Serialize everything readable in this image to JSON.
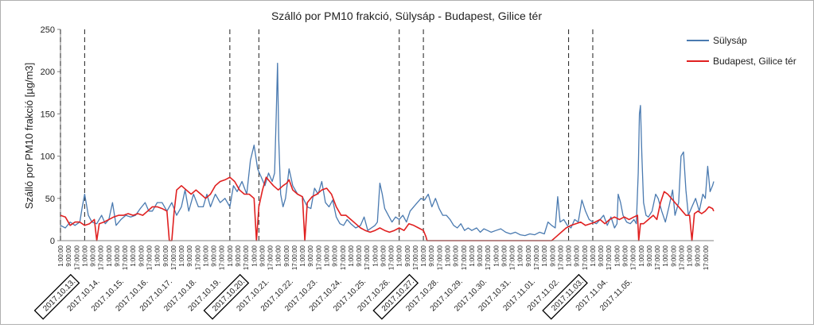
{
  "chart_data": {
    "type": "line",
    "title": "Szálló por PM10 frakció, Sülysáp - Budapest, Gilice tér",
    "ylabel": "Szálló por PM10 frakció [µg/m3]",
    "xlabel": "",
    "ylim": [
      0,
      250
    ],
    "y_ticks": [
      0,
      50,
      100,
      150,
      200,
      250
    ],
    "grid": false,
    "legend_position": "top-right",
    "day_labels": [
      "2017.10.13.",
      "2017.10.14.",
      "2017.10.15.",
      "2017.10.16.",
      "2017.10.17.",
      "2017.10.18.",
      "2017.10.19.",
      "2017.10.20.",
      "2017.10.21.",
      "2017.10.22.",
      "2017.10.23.",
      "2017.10.24.",
      "2017.10.25.",
      "2017.10.26.",
      "2017.10.27.",
      "2017.10.28.",
      "2017.10.29.",
      "2017.10.30.",
      "2017.10.31.",
      "2017.11.01.",
      "2017.11.02.",
      "2017.11.03.",
      "2017.11.04.",
      "2017.11.05."
    ],
    "hour_labels": [
      "1:00:00",
      "9:00:00",
      "17:00:00"
    ],
    "boxed_days": [
      "2017.10.13.",
      "2017.10.20.",
      "2017.10.27.",
      "2017.11.03."
    ],
    "dashed_markers_day": [
      0.0,
      1.0,
      7.0,
      8.2,
      14.0,
      15.0,
      21.0,
      22.0
    ],
    "series": [
      {
        "name": "Sülysáp",
        "color": "#4a7ab0",
        "points": [
          [
            0,
            18
          ],
          [
            0.2,
            15
          ],
          [
            0.4,
            22
          ],
          [
            0.6,
            18
          ],
          [
            0.8,
            22
          ],
          [
            0.9,
            40
          ],
          [
            1,
            55
          ],
          [
            1.15,
            30
          ],
          [
            1.3,
            22
          ],
          [
            1.5,
            20
          ],
          [
            1.7,
            30
          ],
          [
            1.85,
            20
          ],
          [
            2,
            25
          ],
          [
            2.15,
            45
          ],
          [
            2.3,
            18
          ],
          [
            2.5,
            25
          ],
          [
            2.7,
            30
          ],
          [
            2.9,
            28
          ],
          [
            3.1,
            30
          ],
          [
            3.3,
            38
          ],
          [
            3.5,
            45
          ],
          [
            3.65,
            35
          ],
          [
            3.8,
            35
          ],
          [
            4,
            45
          ],
          [
            4.2,
            45
          ],
          [
            4.4,
            35
          ],
          [
            4.6,
            45
          ],
          [
            4.8,
            30
          ],
          [
            5,
            40
          ],
          [
            5.15,
            60
          ],
          [
            5.3,
            35
          ],
          [
            5.5,
            55
          ],
          [
            5.7,
            40
          ],
          [
            5.9,
            40
          ],
          [
            6.05,
            55
          ],
          [
            6.2,
            40
          ],
          [
            6.4,
            55
          ],
          [
            6.6,
            45
          ],
          [
            6.8,
            50
          ],
          [
            7,
            40
          ],
          [
            7.15,
            65
          ],
          [
            7.3,
            58
          ],
          [
            7.5,
            70
          ],
          [
            7.7,
            55
          ],
          [
            7.85,
            95
          ],
          [
            8,
            113
          ],
          [
            8.15,
            85
          ],
          [
            8.3,
            75
          ],
          [
            8.45,
            65
          ],
          [
            8.6,
            80
          ],
          [
            8.75,
            70
          ],
          [
            8.85,
            80
          ],
          [
            8.92,
            150
          ],
          [
            8.97,
            210
          ],
          [
            9.02,
            120
          ],
          [
            9.1,
            55
          ],
          [
            9.2,
            40
          ],
          [
            9.3,
            50
          ],
          [
            9.45,
            85
          ],
          [
            9.6,
            65
          ],
          [
            9.8,
            55
          ],
          [
            10,
            52
          ],
          [
            10.2,
            40
          ],
          [
            10.35,
            38
          ],
          [
            10.5,
            62
          ],
          [
            10.65,
            55
          ],
          [
            10.8,
            70
          ],
          [
            10.95,
            45
          ],
          [
            11.1,
            40
          ],
          [
            11.25,
            48
          ],
          [
            11.4,
            28
          ],
          [
            11.55,
            20
          ],
          [
            11.7,
            18
          ],
          [
            11.85,
            25
          ],
          [
            12,
            20
          ],
          [
            12.2,
            15
          ],
          [
            12.4,
            18
          ],
          [
            12.55,
            28
          ],
          [
            12.7,
            12
          ],
          [
            12.85,
            15
          ],
          [
            13,
            18
          ],
          [
            13.1,
            22
          ],
          [
            13.2,
            68
          ],
          [
            13.3,
            55
          ],
          [
            13.4,
            38
          ],
          [
            13.55,
            30
          ],
          [
            13.7,
            22
          ],
          [
            13.85,
            28
          ],
          [
            14,
            25
          ],
          [
            14.15,
            30
          ],
          [
            14.3,
            22
          ],
          [
            14.45,
            35
          ],
          [
            14.6,
            40
          ],
          [
            14.75,
            45
          ],
          [
            14.9,
            50
          ],
          [
            15.05,
            48
          ],
          [
            15.2,
            55
          ],
          [
            15.35,
            40
          ],
          [
            15.5,
            50
          ],
          [
            15.65,
            38
          ],
          [
            15.8,
            30
          ],
          [
            15.95,
            30
          ],
          [
            16.1,
            25
          ],
          [
            16.25,
            18
          ],
          [
            16.4,
            15
          ],
          [
            16.55,
            20
          ],
          [
            16.7,
            12
          ],
          [
            16.85,
            15
          ],
          [
            17,
            12
          ],
          [
            17.2,
            15
          ],
          [
            17.35,
            10
          ],
          [
            17.5,
            14
          ],
          [
            17.65,
            12
          ],
          [
            17.8,
            10
          ],
          [
            18,
            12
          ],
          [
            18.2,
            14
          ],
          [
            18.4,
            10
          ],
          [
            18.6,
            8
          ],
          [
            18.8,
            10
          ],
          [
            19,
            7
          ],
          [
            19.2,
            6
          ],
          [
            19.4,
            8
          ],
          [
            19.6,
            7
          ],
          [
            19.8,
            10
          ],
          [
            20,
            8
          ],
          [
            20.15,
            22
          ],
          [
            20.3,
            18
          ],
          [
            20.45,
            15
          ],
          [
            20.55,
            52
          ],
          [
            20.65,
            22
          ],
          [
            20.8,
            25
          ],
          [
            20.95,
            18
          ],
          [
            21.1,
            15
          ],
          [
            21.25,
            25
          ],
          [
            21.4,
            22
          ],
          [
            21.55,
            48
          ],
          [
            21.7,
            35
          ],
          [
            21.85,
            25
          ],
          [
            22,
            22
          ],
          [
            22.15,
            20
          ],
          [
            22.3,
            25
          ],
          [
            22.45,
            30
          ],
          [
            22.6,
            18
          ],
          [
            22.75,
            28
          ],
          [
            22.9,
            15
          ],
          [
            23,
            20
          ],
          [
            23.05,
            55
          ],
          [
            23.15,
            45
          ],
          [
            23.25,
            30
          ],
          [
            23.4,
            22
          ],
          [
            23.55,
            20
          ],
          [
            23.7,
            25
          ],
          [
            23.8,
            20
          ],
          [
            23.88,
            80
          ],
          [
            23.93,
            150
          ],
          [
            23.97,
            160
          ],
          [
            24.03,
            100
          ],
          [
            24.1,
            45
          ],
          [
            24.2,
            30
          ],
          [
            24.3,
            28
          ],
          [
            24.45,
            35
          ],
          [
            24.6,
            55
          ],
          [
            24.7,
            50
          ],
          [
            24.85,
            35
          ],
          [
            25,
            22
          ],
          [
            25.15,
            40
          ],
          [
            25.3,
            60
          ],
          [
            25.4,
            30
          ],
          [
            25.55,
            45
          ],
          [
            25.65,
            100
          ],
          [
            25.75,
            105
          ],
          [
            25.85,
            60
          ],
          [
            25.95,
            30
          ],
          [
            26.1,
            40
          ],
          [
            26.25,
            50
          ],
          [
            26.4,
            35
          ],
          [
            26.55,
            55
          ],
          [
            26.65,
            50
          ],
          [
            26.75,
            88
          ],
          [
            26.85,
            58
          ],
          [
            26.95,
            65
          ],
          [
            27,
            70
          ]
        ]
      },
      {
        "name": "Budapest, Gilice tér",
        "color": "#e02020",
        "points": [
          [
            0,
            30
          ],
          [
            0.2,
            28
          ],
          [
            0.4,
            18
          ],
          [
            0.6,
            22
          ],
          [
            0.8,
            22
          ],
          [
            1,
            18
          ],
          [
            1.2,
            20
          ],
          [
            1.4,
            25
          ],
          [
            1.5,
            0
          ],
          [
            1.6,
            20
          ],
          [
            1.8,
            22
          ],
          [
            2,
            25
          ],
          [
            2.2,
            28
          ],
          [
            2.4,
            30
          ],
          [
            2.6,
            30
          ],
          [
            2.8,
            32
          ],
          [
            3,
            30
          ],
          [
            3.2,
            32
          ],
          [
            3.4,
            30
          ],
          [
            3.6,
            35
          ],
          [
            3.8,
            40
          ],
          [
            4,
            40
          ],
          [
            4.2,
            38
          ],
          [
            4.4,
            35
          ],
          [
            4.5,
            0
          ],
          [
            4.6,
            0
          ],
          [
            4.7,
            35
          ],
          [
            4.8,
            60
          ],
          [
            5,
            65
          ],
          [
            5.2,
            60
          ],
          [
            5.4,
            55
          ],
          [
            5.6,
            60
          ],
          [
            5.8,
            55
          ],
          [
            6,
            50
          ],
          [
            6.2,
            55
          ],
          [
            6.4,
            65
          ],
          [
            6.6,
            70
          ],
          [
            6.8,
            72
          ],
          [
            7,
            75
          ],
          [
            7.2,
            70
          ],
          [
            7.4,
            60
          ],
          [
            7.6,
            55
          ],
          [
            7.8,
            55
          ],
          [
            8,
            50
          ],
          [
            8.1,
            0
          ],
          [
            8.2,
            40
          ],
          [
            8.35,
            60
          ],
          [
            8.5,
            75
          ],
          [
            8.65,
            70
          ],
          [
            8.8,
            65
          ],
          [
            9,
            60
          ],
          [
            9.2,
            65
          ],
          [
            9.35,
            68
          ],
          [
            9.45,
            72
          ],
          [
            9.6,
            60
          ],
          [
            9.8,
            55
          ],
          [
            10,
            52
          ],
          [
            10.1,
            0
          ],
          [
            10.2,
            45
          ],
          [
            10.4,
            52
          ],
          [
            10.6,
            55
          ],
          [
            10.8,
            60
          ],
          [
            11,
            62
          ],
          [
            11.2,
            55
          ],
          [
            11.4,
            40
          ],
          [
            11.6,
            30
          ],
          [
            11.8,
            30
          ],
          [
            12,
            25
          ],
          [
            12.2,
            20
          ],
          [
            12.4,
            15
          ],
          [
            12.6,
            12
          ],
          [
            12.8,
            10
          ],
          [
            13,
            12
          ],
          [
            13.2,
            15
          ],
          [
            13.4,
            12
          ],
          [
            13.6,
            10
          ],
          [
            13.8,
            12
          ],
          [
            14,
            15
          ],
          [
            14.2,
            12
          ],
          [
            14.4,
            20
          ],
          [
            14.6,
            18
          ],
          [
            14.8,
            15
          ],
          [
            15,
            12
          ],
          [
            15.1,
            5
          ],
          [
            15.15,
            0
          ],
          [
            16,
            0
          ],
          [
            17,
            0
          ],
          [
            18,
            0
          ],
          [
            19,
            0
          ],
          [
            20,
            0
          ],
          [
            20.3,
            0
          ],
          [
            20.5,
            5
          ],
          [
            20.7,
            10
          ],
          [
            20.9,
            15
          ],
          [
            21.1,
            18
          ],
          [
            21.3,
            20
          ],
          [
            21.5,
            22
          ],
          [
            21.7,
            18
          ],
          [
            21.9,
            20
          ],
          [
            22.1,
            22
          ],
          [
            22.3,
            25
          ],
          [
            22.5,
            20
          ],
          [
            22.7,
            25
          ],
          [
            22.9,
            28
          ],
          [
            23.1,
            25
          ],
          [
            23.3,
            28
          ],
          [
            23.5,
            25
          ],
          [
            23.7,
            28
          ],
          [
            23.85,
            30
          ],
          [
            23.9,
            0
          ],
          [
            23.97,
            20
          ],
          [
            24.1,
            20
          ],
          [
            24.3,
            25
          ],
          [
            24.5,
            30
          ],
          [
            24.65,
            25
          ],
          [
            24.8,
            45
          ],
          [
            24.95,
            58
          ],
          [
            25.1,
            55
          ],
          [
            25.25,
            50
          ],
          [
            25.4,
            45
          ],
          [
            25.55,
            40
          ],
          [
            25.7,
            35
          ],
          [
            25.85,
            30
          ],
          [
            26,
            30
          ],
          [
            26.1,
            0
          ],
          [
            26.2,
            32
          ],
          [
            26.35,
            35
          ],
          [
            26.5,
            32
          ],
          [
            26.65,
            35
          ],
          [
            26.8,
            40
          ],
          [
            26.95,
            38
          ],
          [
            27,
            35
          ]
        ]
      }
    ]
  }
}
